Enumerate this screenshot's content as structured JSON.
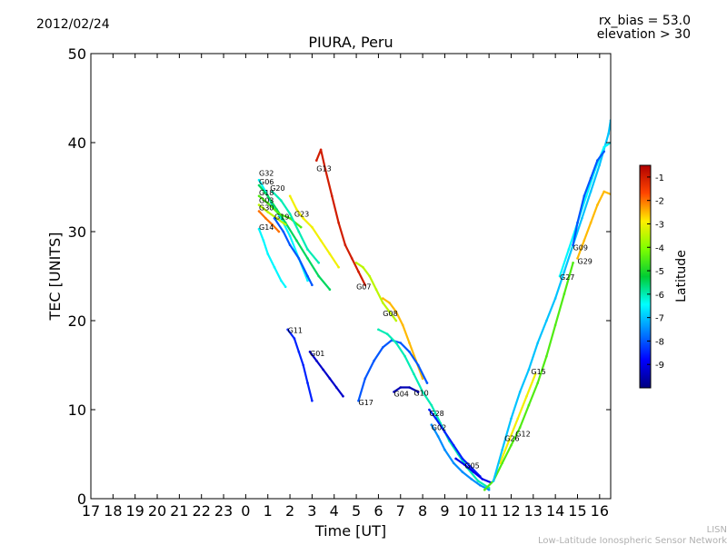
{
  "chart_data": {
    "type": "scatter",
    "date": "2012/02/24",
    "title": "PIURA, Peru",
    "annotation_lines": [
      "rx_bias = 53.0",
      "elevation > 30"
    ],
    "xlabel": "Time [UT]",
    "ylabel": "TEC [UNITS]",
    "xlim": [
      0,
      23.5
    ],
    "ylim": [
      0,
      50
    ],
    "x_ticks": [
      {
        "pos": 0,
        "label": "17"
      },
      {
        "pos": 1,
        "label": "18"
      },
      {
        "pos": 2,
        "label": "19"
      },
      {
        "pos": 3,
        "label": "20"
      },
      {
        "pos": 4,
        "label": "21"
      },
      {
        "pos": 5,
        "label": "22"
      },
      {
        "pos": 6,
        "label": "23"
      },
      {
        "pos": 7,
        "label": "0"
      },
      {
        "pos": 8,
        "label": "1"
      },
      {
        "pos": 9,
        "label": "2"
      },
      {
        "pos": 10,
        "label": "3"
      },
      {
        "pos": 11,
        "label": "4"
      },
      {
        "pos": 12,
        "label": "5"
      },
      {
        "pos": 13,
        "label": "6"
      },
      {
        "pos": 14,
        "label": "7"
      },
      {
        "pos": 15,
        "label": "8"
      },
      {
        "pos": 16,
        "label": "9"
      },
      {
        "pos": 17,
        "label": "10"
      },
      {
        "pos": 18,
        "label": "11"
      },
      {
        "pos": 19,
        "label": "12"
      },
      {
        "pos": 20,
        "label": "13"
      },
      {
        "pos": 21,
        "label": "14"
      },
      {
        "pos": 22,
        "label": "15"
      },
      {
        "pos": 23,
        "label": "16"
      }
    ],
    "y_ticks": [
      0,
      10,
      20,
      30,
      40,
      50
    ],
    "colorbar": {
      "label": "Latitude",
      "range": [
        -10,
        -0.5
      ],
      "ticks": [
        -1,
        -2,
        -3,
        -4,
        -5,
        -6,
        -7,
        -8,
        -9
      ]
    },
    "series": [
      {
        "name": "G32",
        "lat": -6.5,
        "label_at": [
          7.6,
          36.3
        ],
        "points": [
          [
            7.6,
            35.8
          ],
          [
            7.9,
            34.5
          ],
          [
            8.2,
            33.0
          ],
          [
            8.6,
            31.5
          ],
          [
            9.0,
            29.5
          ],
          [
            9.4,
            27.0
          ],
          [
            9.8,
            24.5
          ]
        ]
      },
      {
        "name": "G06",
        "lat": -5.5,
        "label_at": [
          7.6,
          35.3
        ],
        "points": [
          [
            7.6,
            35.2
          ],
          [
            8.0,
            34.0
          ],
          [
            8.4,
            32.5
          ],
          [
            8.8,
            31.0
          ],
          [
            9.3,
            29.0
          ],
          [
            9.8,
            27.0
          ],
          [
            10.3,
            25.0
          ],
          [
            10.8,
            23.5
          ]
        ]
      },
      {
        "name": "G18",
        "lat": -4.5,
        "label_at": [
          7.6,
          34.1
        ],
        "points": [
          [
            7.6,
            34.0
          ],
          [
            8.0,
            33.2
          ],
          [
            8.5,
            32.0
          ],
          [
            9.0,
            31.5
          ],
          [
            9.5,
            30.5
          ]
        ]
      },
      {
        "name": "G20",
        "lat": -6.0,
        "label_at": [
          8.1,
          34.6
        ],
        "points": [
          [
            8.2,
            34.5
          ],
          [
            8.6,
            33.5
          ],
          [
            9.0,
            32.0
          ],
          [
            9.4,
            30.0
          ],
          [
            9.8,
            28.0
          ],
          [
            10.3,
            26.5
          ]
        ]
      },
      {
        "name": "G03",
        "lat": -3.5,
        "label_at": [
          7.6,
          33.2
        ],
        "points": [
          [
            7.6,
            33.0
          ],
          [
            8.0,
            32.2
          ],
          [
            8.4,
            31.5
          ],
          [
            8.8,
            30.8
          ]
        ]
      },
      {
        "name": "G30",
        "lat": -2.0,
        "label_at": [
          7.6,
          32.4
        ],
        "points": [
          [
            7.6,
            32.3
          ],
          [
            7.9,
            31.5
          ],
          [
            8.2,
            30.8
          ],
          [
            8.5,
            30.0
          ]
        ]
      },
      {
        "name": "G19",
        "lat": -8.0,
        "label_at": [
          8.3,
          31.4
        ],
        "points": [
          [
            8.3,
            31.5
          ],
          [
            8.7,
            30.0
          ],
          [
            9.0,
            28.5
          ],
          [
            9.4,
            27.0
          ],
          [
            9.8,
            25.0
          ],
          [
            10.0,
            24.0
          ]
        ]
      },
      {
        "name": "G23",
        "lat": -3.0,
        "label_at": [
          9.2,
          31.7
        ],
        "points": [
          [
            9.0,
            34.0
          ],
          [
            9.3,
            32.5
          ],
          [
            9.6,
            31.5
          ],
          [
            10.0,
            30.5
          ],
          [
            10.4,
            29.0
          ],
          [
            10.8,
            27.5
          ],
          [
            11.2,
            26.0
          ]
        ]
      },
      {
        "name": "G14",
        "lat": -6.5,
        "label_at": [
          7.6,
          30.2
        ],
        "points": [
          [
            7.6,
            30.3
          ],
          [
            7.8,
            29.0
          ],
          [
            8.0,
            27.5
          ],
          [
            8.3,
            26.0
          ],
          [
            8.6,
            24.5
          ],
          [
            8.8,
            23.8
          ]
        ]
      },
      {
        "name": "G13",
        "lat": -1.0,
        "label_at": [
          10.2,
          36.8
        ],
        "points": [
          [
            10.2,
            38.0
          ],
          [
            10.4,
            39.2
          ],
          [
            10.6,
            37.0
          ],
          [
            10.9,
            34.0
          ],
          [
            11.2,
            31.0
          ],
          [
            11.5,
            28.5
          ],
          [
            11.8,
            27.0
          ],
          [
            12.1,
            25.5
          ],
          [
            12.4,
            24.0
          ]
        ]
      },
      {
        "name": "G07",
        "lat": -3.5,
        "label_at": [
          12.0,
          23.5
        ],
        "points": [
          [
            12.0,
            26.5
          ],
          [
            12.3,
            26.0
          ],
          [
            12.6,
            25.0
          ],
          [
            12.9,
            23.5
          ],
          [
            13.2,
            22.0
          ],
          [
            13.5,
            21.0
          ],
          [
            13.8,
            20.0
          ]
        ]
      },
      {
        "name": "G08",
        "lat": -2.5,
        "label_at": [
          13.2,
          20.5
        ],
        "points": [
          [
            13.2,
            22.5
          ],
          [
            13.5,
            22.0
          ],
          [
            13.8,
            21.0
          ],
          [
            14.1,
            19.5
          ],
          [
            14.4,
            17.5
          ],
          [
            14.7,
            15.5
          ],
          [
            15.0,
            13.5
          ]
        ]
      },
      {
        "name": "G11",
        "lat": -8.5,
        "label_at": [
          8.9,
          18.6
        ],
        "points": [
          [
            8.9,
            19.0
          ],
          [
            9.2,
            18.0
          ],
          [
            9.4,
            16.5
          ],
          [
            9.6,
            15.0
          ],
          [
            9.8,
            13.0
          ],
          [
            10.0,
            11.0
          ]
        ]
      },
      {
        "name": "G01",
        "lat": -9.3,
        "label_at": [
          9.9,
          16.0
        ],
        "points": [
          [
            9.9,
            16.5
          ],
          [
            10.2,
            15.5
          ],
          [
            10.5,
            14.5
          ],
          [
            10.8,
            13.5
          ],
          [
            11.1,
            12.5
          ],
          [
            11.4,
            11.5
          ]
        ]
      },
      {
        "name": "G17",
        "lat": -8.0,
        "label_at": [
          12.1,
          10.5
        ],
        "points": [
          [
            12.1,
            11.0
          ],
          [
            12.4,
            13.5
          ],
          [
            12.8,
            15.5
          ],
          [
            13.2,
            17.0
          ],
          [
            13.6,
            17.8
          ],
          [
            14.0,
            17.5
          ],
          [
            14.4,
            16.5
          ],
          [
            14.8,
            15.0
          ],
          [
            15.2,
            13.0
          ]
        ]
      },
      {
        "name": "G04",
        "lat": -9.5,
        "label_at": [
          13.7,
          11.5
        ],
        "points": [
          [
            13.7,
            12.0
          ],
          [
            14.0,
            12.5
          ],
          [
            14.4,
            12.5
          ],
          [
            14.8,
            12.0
          ]
        ]
      },
      {
        "name": "G10",
        "lat": -6.0,
        "label_at": [
          14.6,
          11.6
        ],
        "points": [
          [
            13.0,
            19.0
          ],
          [
            13.4,
            18.5
          ],
          [
            13.8,
            17.5
          ],
          [
            14.2,
            16.0
          ],
          [
            14.6,
            14.0
          ],
          [
            15.0,
            12.0
          ],
          [
            15.4,
            10.5
          ],
          [
            15.8,
            8.5
          ],
          [
            16.2,
            6.5
          ],
          [
            16.6,
            5.0
          ],
          [
            17.0,
            3.5
          ],
          [
            17.5,
            2.0
          ],
          [
            18.0,
            1.2
          ]
        ]
      },
      {
        "name": "G28",
        "lat": -8.5,
        "label_at": [
          15.3,
          9.3
        ],
        "points": [
          [
            15.3,
            10.0
          ],
          [
            15.6,
            9.0
          ],
          [
            16.0,
            7.5
          ],
          [
            16.4,
            6.0
          ],
          [
            16.8,
            4.5
          ],
          [
            17.2,
            3.5
          ],
          [
            17.6,
            2.5
          ]
        ]
      },
      {
        "name": "G02",
        "lat": -7.5,
        "label_at": [
          15.4,
          7.7
        ],
        "points": [
          [
            15.4,
            8.3
          ],
          [
            15.7,
            7.0
          ],
          [
            16.0,
            5.5
          ],
          [
            16.4,
            4.0
          ],
          [
            16.8,
            3.0
          ],
          [
            17.2,
            2.2
          ],
          [
            17.6,
            1.5
          ],
          [
            18.0,
            1.0
          ]
        ]
      },
      {
        "name": "G05",
        "lat": -9.0,
        "label_at": [
          16.9,
          3.4
        ],
        "points": [
          [
            16.5,
            4.5
          ],
          [
            16.9,
            3.8
          ],
          [
            17.3,
            3.0
          ],
          [
            17.7,
            2.2
          ],
          [
            18.1,
            1.8
          ]
        ]
      },
      {
        "name": "G26",
        "lat": -4.5,
        "label_at": [
          18.7,
          6.5
        ],
        "points": [
          [
            17.8,
            1.0
          ],
          [
            18.2,
            2.0
          ],
          [
            18.6,
            4.0
          ],
          [
            19.0,
            6.0
          ],
          [
            19.4,
            8.0
          ],
          [
            19.8,
            10.5
          ],
          [
            20.2,
            13.0
          ],
          [
            20.6,
            16.0
          ],
          [
            21.0,
            19.5
          ],
          [
            21.4,
            23.0
          ],
          [
            21.8,
            26.5
          ]
        ]
      },
      {
        "name": "G12",
        "lat": -3.0,
        "label_at": [
          19.2,
          7.0
        ],
        "points": [
          [
            18.5,
            4.0
          ],
          [
            18.9,
            6.5
          ],
          [
            19.3,
            9.0
          ],
          [
            19.7,
            11.5
          ],
          [
            20.1,
            14.0
          ]
        ]
      },
      {
        "name": "G15",
        "lat": -7.0,
        "label_at": [
          19.9,
          14.0
        ],
        "points": [
          [
            18.2,
            2.0
          ],
          [
            18.6,
            5.5
          ],
          [
            19.0,
            9.0
          ],
          [
            19.4,
            12.0
          ],
          [
            19.8,
            14.5
          ],
          [
            20.2,
            17.5
          ],
          [
            20.6,
            20.0
          ],
          [
            21.0,
            22.5
          ],
          [
            21.4,
            25.5
          ],
          [
            21.8,
            28.5
          ],
          [
            22.2,
            31.5
          ],
          [
            22.6,
            34.5
          ],
          [
            23.0,
            37.5
          ],
          [
            23.4,
            41.0
          ],
          [
            23.5,
            42.5
          ]
        ]
      },
      {
        "name": "G27",
        "lat": -6.5,
        "label_at": [
          21.2,
          24.6
        ],
        "points": [
          [
            21.2,
            25.0
          ],
          [
            21.6,
            28.0
          ],
          [
            22.0,
            31.0
          ],
          [
            22.4,
            34.0
          ],
          [
            22.8,
            37.0
          ],
          [
            23.2,
            39.5
          ],
          [
            23.5,
            40.0
          ]
        ]
      },
      {
        "name": "G09",
        "lat": -8.0,
        "label_at": [
          21.8,
          27.9
        ],
        "points": [
          [
            21.8,
            28.5
          ],
          [
            22.0,
            31.0
          ],
          [
            22.3,
            34.0
          ],
          [
            22.6,
            36.0
          ],
          [
            22.9,
            38.0
          ],
          [
            23.2,
            39.0
          ]
        ]
      },
      {
        "name": "G29",
        "lat": -2.5,
        "label_at": [
          22.0,
          26.4
        ],
        "points": [
          [
            22.0,
            27.0
          ],
          [
            22.3,
            29.0
          ],
          [
            22.6,
            31.0
          ],
          [
            22.9,
            33.0
          ],
          [
            23.2,
            34.5
          ],
          [
            23.5,
            34.2
          ]
        ]
      }
    ]
  },
  "footer": {
    "line1": "LISN",
    "line2": "Low-Latitude Ionospheric Sensor Network"
  }
}
